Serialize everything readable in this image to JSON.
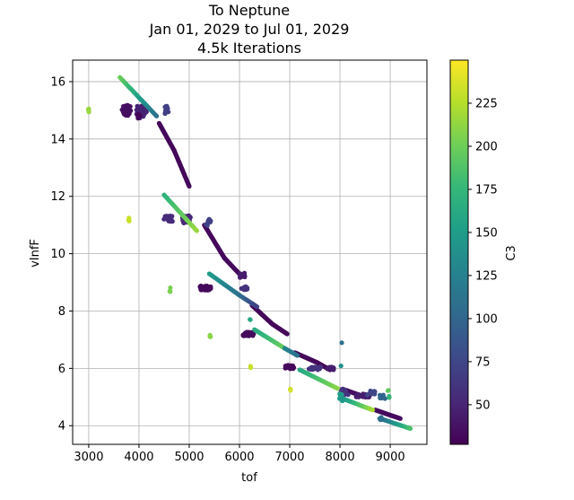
{
  "chart_data": {
    "type": "scatter",
    "title_lines": [
      "To Neptune",
      "Jan 01, 2029 to Jul 01, 2029",
      "4.5k Iterations"
    ],
    "xlabel": "tof",
    "ylabel": "vInfF",
    "colorbar_label": "C3",
    "grid": true,
    "xlim": [
      2680,
      9730
    ],
    "ylim": [
      3.35,
      16.75
    ],
    "xticks": [
      3000,
      4000,
      5000,
      6000,
      7000,
      8000,
      9000
    ],
    "yticks": [
      4,
      6,
      8,
      10,
      12,
      14,
      16
    ],
    "colorbar_range": [
      27,
      250
    ],
    "colorbar_ticks": [
      50,
      75,
      100,
      125,
      150,
      175,
      200,
      225
    ],
    "colormap_stops": [
      "#440154",
      "#482878",
      "#3e4989",
      "#31688e",
      "#26828e",
      "#1f9e89",
      "#35b779",
      "#6ece58",
      "#b5de2b",
      "#fde725"
    ],
    "point_groups": [
      {
        "kind": "line",
        "from": [
          4400,
          14.55
        ],
        "to": [
          4700,
          13.6
        ],
        "n": 40,
        "c": 32
      },
      {
        "kind": "line",
        "from": [
          4700,
          13.6
        ],
        "to": [
          5000,
          12.35
        ],
        "n": 40,
        "c": 32
      },
      {
        "kind": "line",
        "from": [
          5300,
          11.0
        ],
        "to": [
          5700,
          9.85
        ],
        "n": 45,
        "c": 32
      },
      {
        "kind": "line",
        "from": [
          5700,
          9.85
        ],
        "to": [
          6050,
          9.2
        ],
        "n": 30,
        "c": 32
      },
      {
        "kind": "line",
        "from": [
          6250,
          8.2
        ],
        "to": [
          6650,
          7.55
        ],
        "n": 45,
        "c": 32
      },
      {
        "kind": "line",
        "from": [
          6650,
          7.55
        ],
        "to": [
          6950,
          7.2
        ],
        "n": 30,
        "c": 32
      },
      {
        "kind": "line",
        "from": [
          7100,
          6.55
        ],
        "to": [
          7550,
          6.2
        ],
        "n": 40,
        "c": 32
      },
      {
        "kind": "line",
        "from": [
          7550,
          6.2
        ],
        "to": [
          7800,
          5.95
        ],
        "n": 20,
        "c": 32
      },
      {
        "kind": "line",
        "from": [
          8100,
          5.25
        ],
        "to": [
          8500,
          5.0
        ],
        "n": 30,
        "c": 34
      },
      {
        "kind": "line",
        "from": [
          8700,
          4.55
        ],
        "to": [
          9200,
          4.25
        ],
        "n": 40,
        "c": 34
      },
      {
        "kind": "cluster",
        "x": 3750,
        "y": 15.0,
        "rx": 90,
        "ry": 0.18,
        "n": 40,
        "c": 36
      },
      {
        "kind": "cluster",
        "x": 4050,
        "y": 14.95,
        "rx": 100,
        "ry": 0.22,
        "n": 40,
        "c": 48
      },
      {
        "kind": "cluster",
        "x": 4550,
        "y": 15.0,
        "rx": 40,
        "ry": 0.15,
        "n": 10,
        "c": 70
      },
      {
        "kind": "cluster",
        "x": 4000,
        "y": 14.8,
        "rx": 40,
        "ry": 0.1,
        "n": 6,
        "c": 30
      },
      {
        "kind": "cluster",
        "x": 4580,
        "y": 11.22,
        "rx": 90,
        "ry": 0.1,
        "n": 22,
        "c": 55
      },
      {
        "kind": "cluster",
        "x": 4950,
        "y": 11.2,
        "rx": 90,
        "ry": 0.14,
        "n": 28,
        "c": 52
      },
      {
        "kind": "cluster",
        "x": 5380,
        "y": 11.1,
        "rx": 50,
        "ry": 0.12,
        "n": 12,
        "c": 70
      },
      {
        "kind": "cluster",
        "x": 5320,
        "y": 8.8,
        "rx": 110,
        "ry": 0.08,
        "n": 30,
        "c": 32
      },
      {
        "kind": "cluster",
        "x": 6180,
        "y": 7.2,
        "rx": 110,
        "ry": 0.07,
        "n": 30,
        "c": 32
      },
      {
        "kind": "cluster",
        "x": 6050,
        "y": 9.25,
        "rx": 60,
        "ry": 0.08,
        "n": 15,
        "c": 45
      },
      {
        "kind": "cluster",
        "x": 6100,
        "y": 8.8,
        "rx": 60,
        "ry": 0.06,
        "n": 14,
        "c": 60
      },
      {
        "kind": "cluster",
        "x": 7000,
        "y": 6.05,
        "rx": 100,
        "ry": 0.06,
        "n": 25,
        "c": 32
      },
      {
        "kind": "cluster",
        "x": 7500,
        "y": 6.0,
        "rx": 120,
        "ry": 0.05,
        "n": 25,
        "c": 60
      },
      {
        "kind": "cluster",
        "x": 7800,
        "y": 6.0,
        "rx": 80,
        "ry": 0.05,
        "n": 12,
        "c": 45
      },
      {
        "kind": "cluster",
        "x": 8450,
        "y": 5.05,
        "rx": 150,
        "ry": 0.06,
        "n": 28,
        "c": 45
      },
      {
        "kind": "cluster",
        "x": 8600,
        "y": 5.15,
        "rx": 100,
        "ry": 0.08,
        "n": 12,
        "c": 75
      },
      {
        "kind": "cluster",
        "x": 8100,
        "y": 5.2,
        "rx": 80,
        "ry": 0.12,
        "n": 15,
        "c": 60
      },
      {
        "kind": "cluster",
        "x": 8850,
        "y": 5.0,
        "rx": 60,
        "ry": 0.08,
        "n": 8,
        "c": 100
      },
      {
        "kind": "cluster",
        "x": 8030,
        "y": 5.0,
        "rx": 40,
        "ry": 0.15,
        "n": 6,
        "c": 150
      },
      {
        "kind": "cluster",
        "x": 3000,
        "y": 15.0,
        "rx": 8,
        "ry": 0.08,
        "n": 4,
        "c": 215
      },
      {
        "kind": "cluster",
        "x": 3800,
        "y": 11.2,
        "rx": 8,
        "ry": 0.1,
        "n": 4,
        "c": 232
      },
      {
        "kind": "cluster",
        "x": 4620,
        "y": 8.75,
        "rx": 8,
        "ry": 0.08,
        "n": 4,
        "c": 205
      },
      {
        "kind": "cluster",
        "x": 5420,
        "y": 7.15,
        "rx": 8,
        "ry": 0.05,
        "n": 4,
        "c": 210
      },
      {
        "kind": "cluster",
        "x": 6220,
        "y": 6.05,
        "rx": 8,
        "ry": 0.05,
        "n": 3,
        "c": 232
      },
      {
        "kind": "cluster",
        "x": 7020,
        "y": 5.25,
        "rx": 8,
        "ry": 0.05,
        "n": 3,
        "c": 235
      },
      {
        "kind": "cluster",
        "x": 8960,
        "y": 5.25,
        "rx": 8,
        "ry": 0.03,
        "n": 2,
        "c": 195
      },
      {
        "kind": "cluster",
        "x": 8980,
        "y": 5.0,
        "rx": 8,
        "ry": 0.03,
        "n": 2,
        "c": 175
      },
      {
        "kind": "cluster",
        "x": 6210,
        "y": 7.7,
        "rx": 8,
        "ry": 0.03,
        "n": 2,
        "c": 160
      },
      {
        "kind": "gradient",
        "from": [
          3620,
          16.15
        ],
        "to": [
          4350,
          14.8
        ],
        "n": 30,
        "c_from": 200,
        "c_to": 110
      },
      {
        "kind": "gradient",
        "from": [
          4500,
          12.05
        ],
        "to": [
          5150,
          10.8
        ],
        "n": 32,
        "c_from": 170,
        "c_to": 215
      },
      {
        "kind": "gradient",
        "from": [
          5400,
          9.3
        ],
        "to": [
          6000,
          8.55
        ],
        "n": 26,
        "c_from": 150,
        "c_to": 110
      },
      {
        "kind": "gradient",
        "from": [
          6000,
          8.55
        ],
        "to": [
          6350,
          8.15
        ],
        "n": 15,
        "c_from": 110,
        "c_to": 70
      },
      {
        "kind": "gradient",
        "from": [
          6300,
          7.35
        ],
        "to": [
          6900,
          6.7
        ],
        "n": 26,
        "c_from": 160,
        "c_to": 200
      },
      {
        "kind": "gradient",
        "from": [
          6900,
          6.7
        ],
        "to": [
          7150,
          6.45
        ],
        "n": 10,
        "c_from": 130,
        "c_to": 110
      },
      {
        "kind": "gradient",
        "from": [
          7200,
          5.95
        ],
        "to": [
          7950,
          5.3
        ],
        "n": 32,
        "c_from": 160,
        "c_to": 210
      },
      {
        "kind": "gradient",
        "from": [
          8050,
          4.95
        ],
        "to": [
          8650,
          4.55
        ],
        "n": 26,
        "c_from": 140,
        "c_to": 220
      },
      {
        "kind": "gradient",
        "from": [
          8800,
          4.25
        ],
        "to": [
          9400,
          3.9
        ],
        "n": 26,
        "c_from": 100,
        "c_to": 185
      },
      {
        "kind": "cluster",
        "x": 8030,
        "y": 6.9,
        "rx": 6,
        "ry": 0.03,
        "n": 1,
        "c": 110
      },
      {
        "kind": "cluster",
        "x": 8020,
        "y": 6.1,
        "rx": 6,
        "ry": 0.03,
        "n": 1,
        "c": 140
      },
      {
        "kind": "cluster",
        "x": 8810,
        "y": 4.25,
        "rx": 30,
        "ry": 0.05,
        "n": 5,
        "c": 110
      }
    ]
  }
}
